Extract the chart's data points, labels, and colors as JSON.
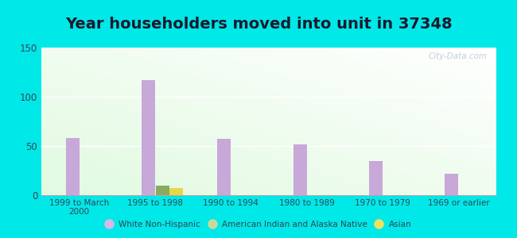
{
  "title": "Year householders moved into unit in 37348",
  "categories": [
    "1999 to March\n2000",
    "1995 to 1998",
    "1990 to 1994",
    "1980 to 1989",
    "1970 to 1979",
    "1969 or earlier"
  ],
  "series": {
    "White Non-Hispanic": [
      58,
      117,
      57,
      52,
      35,
      22
    ],
    "American Indian and Alaska Native": [
      0,
      10,
      0,
      0,
      0,
      0
    ],
    "Asian": [
      0,
      7,
      0,
      0,
      0,
      0
    ]
  },
  "colors": {
    "White Non-Hispanic": "#c8a8d8",
    "American Indian and Alaska Native": "#8aaa60",
    "Asian": "#e8d848"
  },
  "legend_colors": {
    "White Non-Hispanic": "#d8b8e8",
    "American Indian and Alaska Native": "#c8d898",
    "Asian": "#f0e060"
  },
  "ylim": [
    0,
    150
  ],
  "yticks": [
    0,
    50,
    100,
    150
  ],
  "background_outer": "#00e8e8",
  "bar_width": 0.18,
  "title_fontsize": 14,
  "watermark": "City-Data.com"
}
